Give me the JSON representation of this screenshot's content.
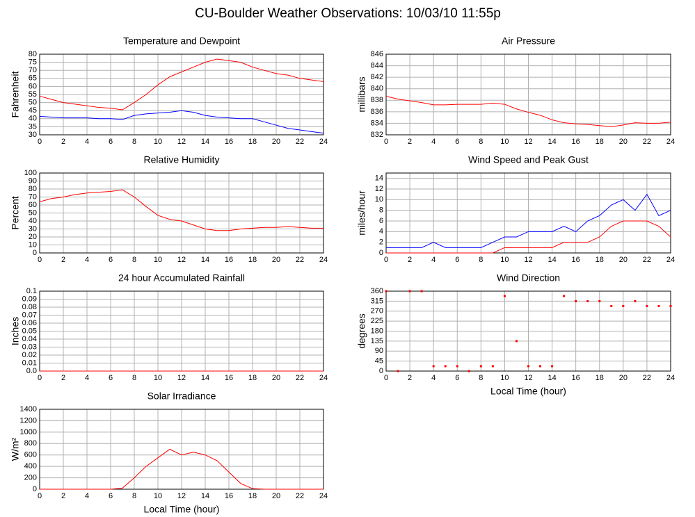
{
  "title": "CU-Boulder Weather Observations: 10/03/10 11:55p",
  "chart_data": [
    {
      "type": "line",
      "title": "Temperature and Dewpoint",
      "ylabel": "Fahrenheit",
      "x": [
        0,
        1,
        2,
        3,
        4,
        5,
        6,
        7,
        8,
        9,
        10,
        11,
        12,
        13,
        14,
        15,
        16,
        17,
        18,
        19,
        20,
        21,
        22,
        23,
        24
      ],
      "series": [
        {
          "color": "#ff0000",
          "values": [
            54,
            52,
            50,
            49,
            48,
            47,
            46.5,
            45.5,
            50,
            55,
            61,
            66,
            69,
            72,
            75,
            77,
            76,
            75,
            72,
            70,
            68,
            67,
            65,
            64,
            63
          ]
        },
        {
          "color": "#0000ff",
          "values": [
            41.5,
            41,
            40.5,
            40.5,
            40.5,
            40,
            40,
            39.5,
            42,
            43,
            43.5,
            44,
            45,
            44,
            42,
            41,
            40.5,
            40,
            40,
            38,
            36,
            34,
            33,
            32,
            31
          ]
        }
      ],
      "xlim": [
        0,
        24
      ],
      "xticks": [
        0,
        2,
        4,
        6,
        8,
        10,
        12,
        14,
        16,
        18,
        20,
        22,
        24
      ],
      "ylim": [
        30,
        80
      ],
      "yticks": [
        30,
        35,
        40,
        45,
        50,
        55,
        60,
        65,
        70,
        75,
        80
      ],
      "grid": true
    },
    {
      "type": "line",
      "title": "Air Pressure",
      "ylabel": "millibars",
      "x": [
        0,
        1,
        2,
        3,
        4,
        5,
        6,
        7,
        8,
        9,
        10,
        11,
        12,
        13,
        14,
        15,
        16,
        17,
        18,
        19,
        20,
        21,
        22,
        23,
        24
      ],
      "series": [
        {
          "color": "#ff0000",
          "values": [
            838.7,
            838.2,
            837.9,
            837.6,
            837.2,
            837.2,
            837.3,
            837.3,
            837.3,
            837.5,
            837.3,
            836.5,
            835.9,
            835.4,
            834.6,
            834.1,
            833.9,
            833.8,
            833.6,
            833.4,
            833.7,
            834.1,
            834.0,
            834.0,
            834.2
          ]
        }
      ],
      "xlim": [
        0,
        24
      ],
      "xticks": [
        0,
        2,
        4,
        6,
        8,
        10,
        12,
        14,
        16,
        18,
        20,
        22,
        24
      ],
      "ylim": [
        832,
        846
      ],
      "yticks": [
        832,
        834,
        836,
        838,
        840,
        842,
        844,
        846
      ],
      "grid": true
    },
    {
      "type": "line",
      "title": "Relative Humidity",
      "ylabel": "Percent",
      "x": [
        0,
        1,
        2,
        3,
        4,
        5,
        6,
        7,
        8,
        9,
        10,
        11,
        12,
        13,
        14,
        15,
        16,
        17,
        18,
        19,
        20,
        21,
        22,
        23,
        24
      ],
      "series": [
        {
          "color": "#ff0000",
          "values": [
            64,
            68,
            70,
            73,
            75,
            76,
            77,
            79,
            70,
            58,
            47,
            42,
            40,
            35,
            30,
            28,
            28,
            30,
            31,
            32,
            32,
            33,
            32,
            31,
            31
          ]
        }
      ],
      "xlim": [
        0,
        24
      ],
      "xticks": [
        0,
        2,
        4,
        6,
        8,
        10,
        12,
        14,
        16,
        18,
        20,
        22,
        24
      ],
      "ylim": [
        0,
        100
      ],
      "yticks": [
        0,
        10,
        20,
        30,
        40,
        50,
        60,
        70,
        80,
        90,
        100
      ],
      "grid": true
    },
    {
      "type": "line",
      "title": "Wind Speed and Peak Gust",
      "ylabel": "miles/hour",
      "x": [
        0,
        1,
        2,
        3,
        4,
        5,
        6,
        7,
        8,
        9,
        10,
        11,
        12,
        13,
        14,
        15,
        16,
        17,
        18,
        19,
        20,
        21,
        22,
        23,
        24
      ],
      "series": [
        {
          "color": "#0000ff",
          "values": [
            1,
            1,
            1,
            1,
            2,
            1,
            1,
            1,
            1,
            2,
            3,
            3,
            4,
            4,
            4,
            5,
            4,
            6,
            7,
            9,
            10,
            8,
            11,
            7,
            8
          ]
        },
        {
          "color": "#ff0000",
          "values": [
            0,
            0,
            0,
            0,
            0,
            0,
            0,
            0,
            0,
            0,
            1,
            1,
            1,
            1,
            1,
            2,
            2,
            2,
            3,
            5,
            6,
            6,
            6,
            5,
            3
          ]
        }
      ],
      "xlim": [
        0,
        24
      ],
      "xticks": [
        0,
        2,
        4,
        6,
        8,
        10,
        12,
        14,
        16,
        18,
        20,
        22,
        24
      ],
      "ylim": [
        0,
        15
      ],
      "yticks": [
        0,
        2,
        4,
        6,
        8,
        10,
        12,
        14
      ],
      "grid": true
    },
    {
      "type": "line",
      "title": "24 hour Accumulated Rainfall",
      "ylabel": "Inches",
      "x": [
        0,
        24
      ],
      "series": [
        {
          "color": "#ff0000",
          "values": [
            0,
            0
          ]
        }
      ],
      "xlim": [
        0,
        24
      ],
      "xticks": [
        0,
        2,
        4,
        6,
        8,
        10,
        12,
        14,
        16,
        18,
        20,
        22,
        24
      ],
      "ylim": [
        0,
        0.1
      ],
      "yticks": [
        {
          "value": 0,
          "label": "0.0"
        },
        0.01,
        0.02,
        0.03,
        0.04,
        0.05,
        0.06,
        0.07,
        0.08,
        0.09,
        0.1
      ],
      "grid": true
    },
    {
      "type": "scatter",
      "title": "Wind Direction",
      "ylabel": "degrees",
      "xlabel": "Local Time (hour)",
      "x": [
        0,
        1,
        2,
        3,
        4,
        5,
        6,
        7,
        8,
        9,
        10,
        11,
        12,
        13,
        14,
        15,
        16,
        17,
        18,
        19,
        20,
        21,
        22,
        23,
        24
      ],
      "series": [
        {
          "color": "#ff0000",
          "values": [
            360,
            0,
            360,
            360,
            22,
            22,
            22,
            0,
            22,
            22,
            338,
            135,
            22,
            22,
            22,
            338,
            315,
            315,
            315,
            293,
            293,
            315,
            293,
            293,
            293
          ]
        }
      ],
      "xlim": [
        0,
        24
      ],
      "xticks": [
        0,
        2,
        4,
        6,
        8,
        10,
        12,
        14,
        16,
        18,
        20,
        22,
        24
      ],
      "ylim": [
        0,
        360
      ],
      "yticks": [
        0,
        45,
        90,
        135,
        180,
        225,
        270,
        315,
        360
      ],
      "grid": true
    },
    {
      "type": "line",
      "title": "Solar Irradiance",
      "ylabel": "W/m²",
      "xlabel": "Local Time (hour)",
      "x": [
        0,
        1,
        2,
        3,
        4,
        5,
        6,
        7,
        8,
        9,
        10,
        11,
        12,
        13,
        14,
        15,
        16,
        17,
        18,
        19,
        20,
        21,
        22,
        23,
        24
      ],
      "series": [
        {
          "color": "#ff0000",
          "values": [
            0,
            0,
            0,
            0,
            0,
            0,
            0,
            20,
            200,
            400,
            550,
            700,
            600,
            650,
            600,
            500,
            300,
            100,
            10,
            0,
            0,
            0,
            0,
            0,
            0
          ]
        }
      ],
      "xlim": [
        0,
        24
      ],
      "xticks": [
        0,
        2,
        4,
        6,
        8,
        10,
        12,
        14,
        16,
        18,
        20,
        22,
        24
      ],
      "ylim": [
        0,
        1400
      ],
      "yticks": [
        0,
        200,
        400,
        600,
        800,
        1000,
        1200,
        1400
      ],
      "grid": true
    }
  ]
}
